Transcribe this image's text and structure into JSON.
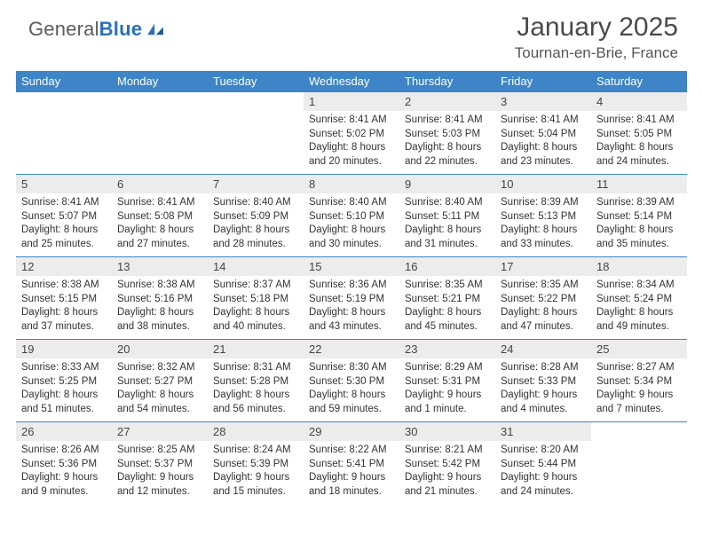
{
  "brand": {
    "gray": "General",
    "blue": "Blue"
  },
  "title": "January 2025",
  "subtitle": "Tournan-en-Brie, France",
  "colors": {
    "header_bg": "#3d85c6",
    "header_fg": "#ffffff",
    "daynum_bg": "#ececec",
    "rule": "#3d85c6",
    "text": "#333333",
    "title": "#4a4a4a"
  },
  "day_names": [
    "Sunday",
    "Monday",
    "Tuesday",
    "Wednesday",
    "Thursday",
    "Friday",
    "Saturday"
  ],
  "weeks": [
    [
      null,
      null,
      null,
      {
        "n": "1",
        "sunrise": "8:41 AM",
        "sunset": "5:02 PM",
        "daylight": "8 hours and 20 minutes."
      },
      {
        "n": "2",
        "sunrise": "8:41 AM",
        "sunset": "5:03 PM",
        "daylight": "8 hours and 22 minutes."
      },
      {
        "n": "3",
        "sunrise": "8:41 AM",
        "sunset": "5:04 PM",
        "daylight": "8 hours and 23 minutes."
      },
      {
        "n": "4",
        "sunrise": "8:41 AM",
        "sunset": "5:05 PM",
        "daylight": "8 hours and 24 minutes."
      }
    ],
    [
      {
        "n": "5",
        "sunrise": "8:41 AM",
        "sunset": "5:07 PM",
        "daylight": "8 hours and 25 minutes."
      },
      {
        "n": "6",
        "sunrise": "8:41 AM",
        "sunset": "5:08 PM",
        "daylight": "8 hours and 27 minutes."
      },
      {
        "n": "7",
        "sunrise": "8:40 AM",
        "sunset": "5:09 PM",
        "daylight": "8 hours and 28 minutes."
      },
      {
        "n": "8",
        "sunrise": "8:40 AM",
        "sunset": "5:10 PM",
        "daylight": "8 hours and 30 minutes."
      },
      {
        "n": "9",
        "sunrise": "8:40 AM",
        "sunset": "5:11 PM",
        "daylight": "8 hours and 31 minutes."
      },
      {
        "n": "10",
        "sunrise": "8:39 AM",
        "sunset": "5:13 PM",
        "daylight": "8 hours and 33 minutes."
      },
      {
        "n": "11",
        "sunrise": "8:39 AM",
        "sunset": "5:14 PM",
        "daylight": "8 hours and 35 minutes."
      }
    ],
    [
      {
        "n": "12",
        "sunrise": "8:38 AM",
        "sunset": "5:15 PM",
        "daylight": "8 hours and 37 minutes."
      },
      {
        "n": "13",
        "sunrise": "8:38 AM",
        "sunset": "5:16 PM",
        "daylight": "8 hours and 38 minutes."
      },
      {
        "n": "14",
        "sunrise": "8:37 AM",
        "sunset": "5:18 PM",
        "daylight": "8 hours and 40 minutes."
      },
      {
        "n": "15",
        "sunrise": "8:36 AM",
        "sunset": "5:19 PM",
        "daylight": "8 hours and 43 minutes."
      },
      {
        "n": "16",
        "sunrise": "8:35 AM",
        "sunset": "5:21 PM",
        "daylight": "8 hours and 45 minutes."
      },
      {
        "n": "17",
        "sunrise": "8:35 AM",
        "sunset": "5:22 PM",
        "daylight": "8 hours and 47 minutes."
      },
      {
        "n": "18",
        "sunrise": "8:34 AM",
        "sunset": "5:24 PM",
        "daylight": "8 hours and 49 minutes."
      }
    ],
    [
      {
        "n": "19",
        "sunrise": "8:33 AM",
        "sunset": "5:25 PM",
        "daylight": "8 hours and 51 minutes."
      },
      {
        "n": "20",
        "sunrise": "8:32 AM",
        "sunset": "5:27 PM",
        "daylight": "8 hours and 54 minutes."
      },
      {
        "n": "21",
        "sunrise": "8:31 AM",
        "sunset": "5:28 PM",
        "daylight": "8 hours and 56 minutes."
      },
      {
        "n": "22",
        "sunrise": "8:30 AM",
        "sunset": "5:30 PM",
        "daylight": "8 hours and 59 minutes."
      },
      {
        "n": "23",
        "sunrise": "8:29 AM",
        "sunset": "5:31 PM",
        "daylight": "9 hours and 1 minute."
      },
      {
        "n": "24",
        "sunrise": "8:28 AM",
        "sunset": "5:33 PM",
        "daylight": "9 hours and 4 minutes."
      },
      {
        "n": "25",
        "sunrise": "8:27 AM",
        "sunset": "5:34 PM",
        "daylight": "9 hours and 7 minutes."
      }
    ],
    [
      {
        "n": "26",
        "sunrise": "8:26 AM",
        "sunset": "5:36 PM",
        "daylight": "9 hours and 9 minutes."
      },
      {
        "n": "27",
        "sunrise": "8:25 AM",
        "sunset": "5:37 PM",
        "daylight": "9 hours and 12 minutes."
      },
      {
        "n": "28",
        "sunrise": "8:24 AM",
        "sunset": "5:39 PM",
        "daylight": "9 hours and 15 minutes."
      },
      {
        "n": "29",
        "sunrise": "8:22 AM",
        "sunset": "5:41 PM",
        "daylight": "9 hours and 18 minutes."
      },
      {
        "n": "30",
        "sunrise": "8:21 AM",
        "sunset": "5:42 PM",
        "daylight": "9 hours and 21 minutes."
      },
      {
        "n": "31",
        "sunrise": "8:20 AM",
        "sunset": "5:44 PM",
        "daylight": "9 hours and 24 minutes."
      },
      null
    ]
  ],
  "labels": {
    "sunrise": "Sunrise:",
    "sunset": "Sunset:",
    "daylight": "Daylight:"
  }
}
